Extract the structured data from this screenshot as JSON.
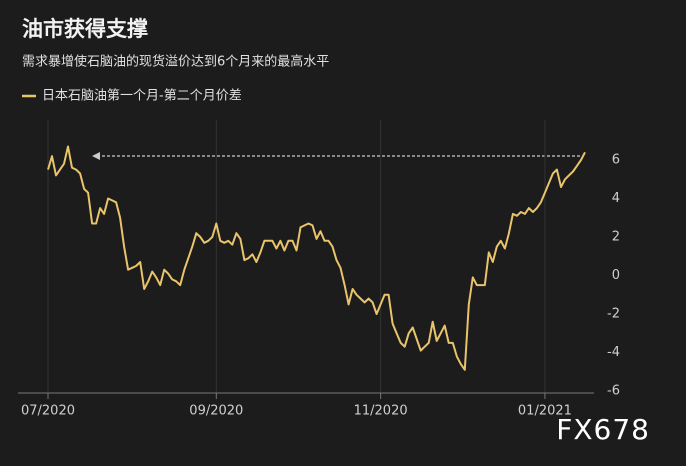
{
  "chart_data": {
    "type": "line",
    "title": "油市获得支撑",
    "subtitle": "需求暴增使石脑油的现货溢价达到6个月来的最高水平",
    "watermark": "FX678",
    "series": [
      {
        "name": "日本石脑油第一个月-第二个月价差",
        "color": "#e9c46a",
        "values": [
          5.5,
          6.2,
          5.2,
          5.5,
          5.8,
          6.7,
          5.6,
          5.5,
          5.3,
          4.5,
          4.3,
          2.7,
          2.7,
          3.5,
          3.2,
          4.0,
          3.9,
          3.8,
          3.0,
          1.5,
          0.3,
          0.4,
          0.5,
          0.7,
          -0.7,
          -0.3,
          0.2,
          -0.1,
          -0.5,
          0.3,
          0.1,
          -0.2,
          -0.3,
          -0.5,
          0.3,
          0.9,
          1.5,
          2.2,
          2.0,
          1.7,
          1.8,
          2.0,
          2.7,
          1.8,
          1.7,
          1.8,
          1.6,
          2.2,
          1.9,
          0.8,
          0.9,
          1.1,
          0.7,
          1.2,
          1.8,
          1.8,
          1.8,
          1.4,
          1.8,
          1.3,
          1.8,
          1.8,
          1.3,
          2.5,
          2.6,
          2.7,
          2.6,
          1.9,
          2.3,
          1.8,
          1.8,
          1.5,
          0.8,
          0.4,
          -0.5,
          -1.5,
          -0.7,
          -1.0,
          -1.2,
          -1.4,
          -1.2,
          -1.4,
          -2.0,
          -1.5,
          -1.0,
          -1.0,
          -2.5,
          -3.0,
          -3.5,
          -3.7,
          -3.0,
          -2.7,
          -3.3,
          -3.9,
          -3.7,
          -3.5,
          -2.4,
          -3.4,
          -3.0,
          -2.6,
          -3.5,
          -3.5,
          -4.2,
          -4.6,
          -4.9,
          -1.5,
          -0.1,
          -0.5,
          -0.5,
          -0.5,
          1.2,
          0.7,
          1.5,
          1.8,
          1.4,
          2.2,
          3.2,
          3.1,
          3.3,
          3.2,
          3.5,
          3.3,
          3.5,
          3.8,
          4.3,
          4.8,
          5.3,
          5.5,
          4.6,
          5.0,
          5.2,
          5.4,
          5.7,
          6.0,
          6.4
        ]
      }
    ],
    "xlim": [
      0,
      134
    ],
    "xticks": [
      {
        "value": 0,
        "label": "07/2020"
      },
      {
        "value": 42,
        "label": "09/2020"
      },
      {
        "value": 83,
        "label": "11/2020"
      },
      {
        "value": 124,
        "label": "01/2021"
      }
    ],
    "ylim": [
      -6,
      6
    ],
    "yticks": [
      -6,
      -4,
      -2,
      0,
      2,
      4,
      6
    ],
    "grid": "x"
  }
}
